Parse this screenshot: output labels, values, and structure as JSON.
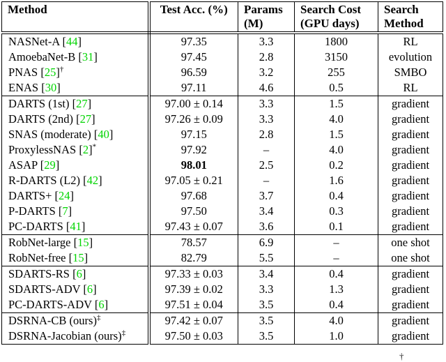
{
  "colors": {
    "citation_green": "#00d400",
    "text": "#000000",
    "border": "#000000",
    "background": "#ffffff"
  },
  "table": {
    "headers": {
      "method": "Method",
      "test_acc": "Test Acc. (%)",
      "params_line1": "Params",
      "params_line2": "(M)",
      "cost_line1": "Search Cost",
      "cost_line2": "(GPU days)",
      "search_line1": "Search",
      "search_line2": "Method"
    },
    "groups": [
      {
        "rows": [
          {
            "method": "NASNet-A",
            "cite": "44",
            "sup": "",
            "acc": "97.35",
            "acc_bold": false,
            "params": "3.3",
            "cost": "1800",
            "search": "RL"
          },
          {
            "method": "AmoebaNet-B",
            "cite": "31",
            "sup": "",
            "acc": "97.45",
            "acc_bold": false,
            "params": "2.8",
            "cost": "3150",
            "search": "evolution"
          },
          {
            "method": "PNAS",
            "cite": "25",
            "sup": "†",
            "acc": "96.59",
            "acc_bold": false,
            "params": "3.2",
            "cost": "255",
            "search": "SMBO"
          },
          {
            "method": "ENAS",
            "cite": "30",
            "sup": "",
            "acc": "97.11",
            "acc_bold": false,
            "params": "4.6",
            "cost": "0.5",
            "search": "RL"
          }
        ]
      },
      {
        "rows": [
          {
            "method": "DARTS (1st)",
            "cite": "27",
            "sup": "",
            "acc": "97.00 ± 0.14",
            "acc_bold": false,
            "params": "3.3",
            "cost": "1.5",
            "search": "gradient"
          },
          {
            "method": "DARTS (2nd)",
            "cite": "27",
            "sup": "",
            "acc": "97.26 ± 0.09",
            "acc_bold": false,
            "params": "3.3",
            "cost": "4.0",
            "search": "gradient"
          },
          {
            "method": "SNAS (moderate)",
            "cite": "40",
            "sup": "",
            "acc": "97.15",
            "acc_bold": false,
            "params": "2.8",
            "cost": "1.5",
            "search": "gradient"
          },
          {
            "method": "ProxylessNAS",
            "cite": "2",
            "sup": "*",
            "acc": "97.92",
            "acc_bold": false,
            "params": "–",
            "cost": "4.0",
            "search": "gradient"
          },
          {
            "method": "ASAP",
            "cite": "29",
            "sup": "",
            "acc": "98.01",
            "acc_bold": true,
            "params": "2.5",
            "cost": "0.2",
            "search": "gradient"
          },
          {
            "method": "R-DARTS (L2)",
            "cite": "42",
            "sup": "",
            "acc": "97.05 ± 0.21",
            "acc_bold": false,
            "params": "–",
            "cost": "1.6",
            "search": "gradient"
          },
          {
            "method": "DARTS+",
            "cite": "24",
            "sup": "",
            "acc": "97.68",
            "acc_bold": false,
            "params": "3.7",
            "cost": "0.4",
            "search": "gradient"
          },
          {
            "method": "P-DARTS",
            "cite": "7",
            "sup": "",
            "acc": "97.50",
            "acc_bold": false,
            "params": "3.4",
            "cost": "0.3",
            "search": "gradient"
          },
          {
            "method": "PC-DARTS",
            "cite": "41",
            "sup": "",
            "acc": "97.43 ± 0.07",
            "acc_bold": false,
            "params": "3.6",
            "cost": "0.1",
            "search": "gradient"
          }
        ]
      },
      {
        "rows": [
          {
            "method": "RobNet-large",
            "cite": "15",
            "sup": "",
            "acc": "78.57",
            "acc_bold": false,
            "params": "6.9",
            "cost": "–",
            "search": "one shot"
          },
          {
            "method": "RobNet-free",
            "cite": "15",
            "sup": "",
            "acc": "82.79",
            "acc_bold": false,
            "params": "5.5",
            "cost": "–",
            "search": "one shot"
          }
        ]
      },
      {
        "rows": [
          {
            "method": "SDARTS-RS",
            "cite": "6",
            "sup": "",
            "acc": "97.33 ± 0.03",
            "acc_bold": false,
            "params": "3.4",
            "cost": "0.4",
            "search": "gradient"
          },
          {
            "method": "SDARTS-ADV",
            "cite": "6",
            "sup": "",
            "acc": "97.39 ± 0.02",
            "acc_bold": false,
            "params": "3.3",
            "cost": "1.3",
            "search": "gradient"
          },
          {
            "method": "PC-DARTS-ADV",
            "cite": "6",
            "sup": "",
            "acc": "97.51 ± 0.04",
            "acc_bold": false,
            "params": "3.5",
            "cost": "0.4",
            "search": "gradient"
          }
        ]
      },
      {
        "rows": [
          {
            "method": "DSRNA-CB (ours)",
            "cite": null,
            "sup": "‡",
            "acc": "97.42 ± 0.07",
            "acc_bold": false,
            "params": "3.5",
            "cost": "4.0",
            "search": "gradient"
          },
          {
            "method": "DSRNA-Jacobian (ours)",
            "cite": null,
            "sup": "‡",
            "acc": "97.50 ± 0.03",
            "acc_bold": false,
            "params": "3.5",
            "cost": "1.0",
            "search": "gradient"
          }
        ]
      }
    ]
  },
  "footnote": {
    "marker": "†"
  }
}
